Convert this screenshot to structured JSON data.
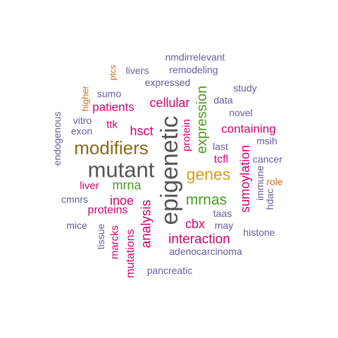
{
  "colors": {
    "grey": "#555555",
    "brown": "#8b6914",
    "gold": "#d4a017",
    "green": "#4a9a1f",
    "magenta": "#d0006f",
    "purple": "#6a5aa0",
    "orange": "#d2691e"
  },
  "words": [
    {
      "text": "epigenetic",
      "color": "grey"
    },
    {
      "text": "mutant",
      "color": "grey"
    },
    {
      "text": "modifiers",
      "color": "brown"
    },
    {
      "text": "genes",
      "color": "gold"
    },
    {
      "text": "expression",
      "color": "green"
    },
    {
      "text": "mrnas",
      "color": "green"
    },
    {
      "text": "mrna",
      "color": "green"
    },
    {
      "text": "interaction",
      "color": "magenta"
    },
    {
      "text": "analysis",
      "color": "magenta"
    },
    {
      "text": "sumoylation",
      "color": "magenta"
    },
    {
      "text": "cellular",
      "color": "magenta"
    },
    {
      "text": "containing",
      "color": "magenta"
    },
    {
      "text": "hsct",
      "color": "magenta"
    },
    {
      "text": "inoe",
      "color": "magenta"
    },
    {
      "text": "cbx",
      "color": "magenta"
    },
    {
      "text": "patients",
      "color": "magenta"
    },
    {
      "text": "proteins",
      "color": "magenta"
    },
    {
      "text": "protein",
      "color": "magenta"
    },
    {
      "text": "mutations",
      "color": "magenta"
    },
    {
      "text": "marcks",
      "color": "magenta"
    },
    {
      "text": "liver",
      "color": "magenta"
    },
    {
      "text": "ttk",
      "color": "magenta"
    },
    {
      "text": "tcfl",
      "color": "magenta"
    },
    {
      "text": "nmdirrelevant",
      "color": "purple"
    },
    {
      "text": "remodeling",
      "color": "purple"
    },
    {
      "text": "livers",
      "color": "purple"
    },
    {
      "text": "expressed",
      "color": "purple"
    },
    {
      "text": "study",
      "color": "purple"
    },
    {
      "text": "sumo",
      "color": "purple"
    },
    {
      "text": "data",
      "color": "purple"
    },
    {
      "text": "novel",
      "color": "purple"
    },
    {
      "text": "endogenous",
      "color": "purple"
    },
    {
      "text": "vitro",
      "color": "purple"
    },
    {
      "text": "exon",
      "color": "purple"
    },
    {
      "text": "last",
      "color": "purple"
    },
    {
      "text": "msih",
      "color": "purple"
    },
    {
      "text": "cancer",
      "color": "purple"
    },
    {
      "text": "immune",
      "color": "purple"
    },
    {
      "text": "hdac",
      "color": "purple"
    },
    {
      "text": "cmnrs",
      "color": "purple"
    },
    {
      "text": "mice",
      "color": "purple"
    },
    {
      "text": "tissue",
      "color": "purple"
    },
    {
      "text": "taas",
      "color": "purple"
    },
    {
      "text": "may",
      "color": "purple"
    },
    {
      "text": "histone",
      "color": "purple"
    },
    {
      "text": "adenocarcinoma",
      "color": "purple"
    },
    {
      "text": "pancreatic",
      "color": "purple"
    },
    {
      "text": "ptcs",
      "color": "orange"
    },
    {
      "text": "higher",
      "color": "orange"
    },
    {
      "text": "role",
      "color": "orange"
    }
  ]
}
